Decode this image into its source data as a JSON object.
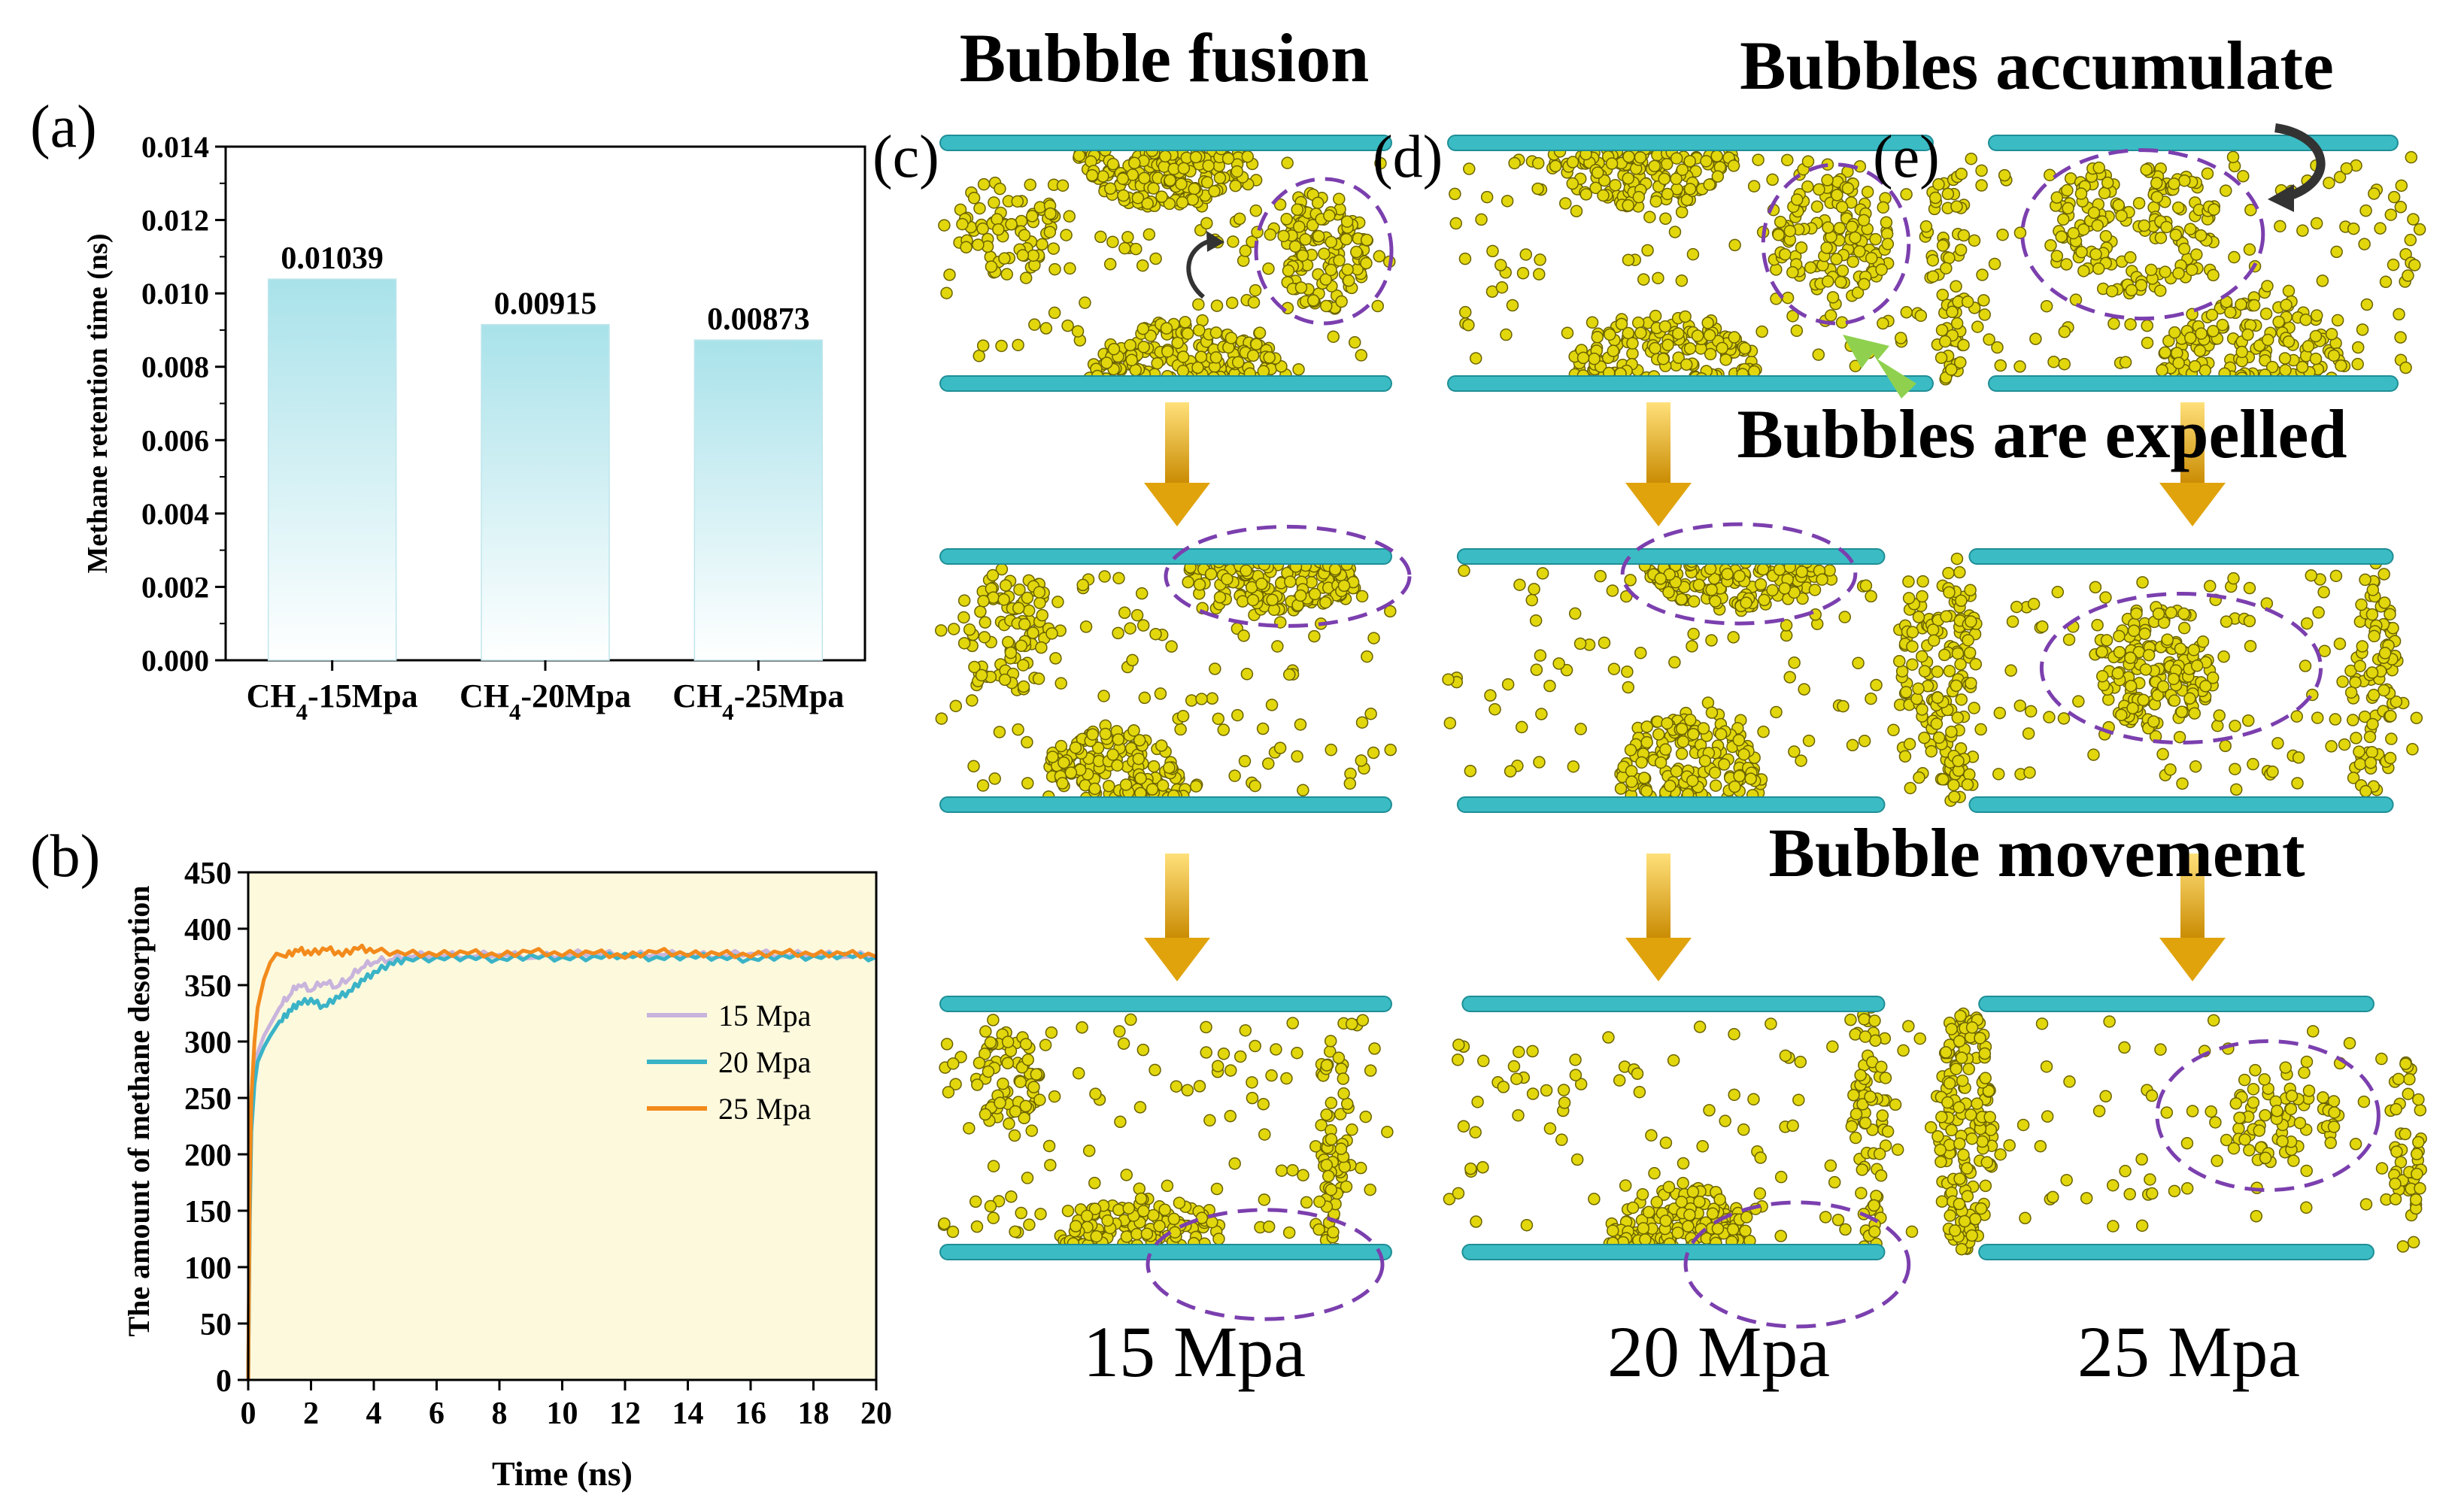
{
  "panel_labels": {
    "a": "(a)",
    "b": "(b)",
    "c": "(c)",
    "d": "(d)",
    "e": "(e)"
  },
  "chart_data": [
    {
      "id": "a",
      "type": "bar",
      "title": "",
      "xlabel": "",
      "ylabel": "Methane retention time (ns)",
      "categories": [
        "CH4-15Mpa",
        "CH4-20Mpa",
        "CH4-25Mpa"
      ],
      "values": [
        0.01039,
        0.00915,
        0.00873
      ],
      "value_labels": [
        "0.01039",
        "0.00915",
        "0.00873"
      ],
      "ylim": [
        0,
        0.014
      ],
      "yticks": [
        "0.000",
        "0.002",
        "0.004",
        "0.006",
        "0.008",
        "0.010",
        "0.012",
        "0.014"
      ],
      "bar_color": "#bfe9ef"
    },
    {
      "id": "b",
      "type": "line",
      "xlabel": "Time (ns)",
      "ylabel": "The amount of methane desorption",
      "xlim": [
        0,
        20
      ],
      "ylim": [
        0,
        450
      ],
      "xticks": [
        "0",
        "2",
        "4",
        "6",
        "8",
        "10",
        "12",
        "14",
        "16",
        "18",
        "20"
      ],
      "yticks": [
        "0",
        "50",
        "100",
        "150",
        "200",
        "250",
        "300",
        "350",
        "400",
        "450"
      ],
      "background": "#fdf9dd",
      "legend_position": "center-right",
      "series": [
        {
          "name": "15 Mpa",
          "color": "#c8b4dc",
          "x": [
            0,
            0.05,
            0.1,
            0.2,
            0.3,
            0.5,
            0.7,
            1.0,
            1.3,
            1.6,
            2.0,
            2.4,
            2.8,
            3.2,
            3.6,
            4.0,
            4.5,
            5.0,
            6.0,
            7.0,
            8.0,
            9.0,
            10.0,
            11.0,
            12.0,
            13.0,
            14.0,
            15.0,
            16.0,
            17.0,
            18.0,
            19.0,
            20.0
          ],
          "y": [
            0,
            150,
            230,
            275,
            290,
            305,
            315,
            330,
            340,
            350,
            345,
            352,
            348,
            355,
            365,
            370,
            372,
            375,
            376,
            375,
            377,
            374,
            376,
            378,
            375,
            377,
            376,
            375,
            378,
            376,
            377,
            375,
            376
          ]
        },
        {
          "name": "20 Mpa",
          "color": "#3ab3c7",
          "x": [
            0,
            0.05,
            0.1,
            0.2,
            0.3,
            0.5,
            0.7,
            1.0,
            1.3,
            1.6,
            2.0,
            2.4,
            2.8,
            3.2,
            3.6,
            4.0,
            4.5,
            5.0,
            6.0,
            7.0,
            8.0,
            9.0,
            10.0,
            11.0,
            12.0,
            13.0,
            14.0,
            15.0,
            16.0,
            17.0,
            18.0,
            19.0,
            20.0
          ],
          "y": [
            0,
            140,
            220,
            262,
            282,
            295,
            305,
            318,
            328,
            335,
            338,
            332,
            340,
            345,
            355,
            362,
            370,
            374,
            375,
            376,
            374,
            377,
            375,
            376,
            378,
            375,
            377,
            376,
            374,
            377,
            376,
            378,
            375
          ]
        },
        {
          "name": "25 Mpa",
          "color": "#f28a1c",
          "x": [
            0,
            0.05,
            0.1,
            0.2,
            0.3,
            0.5,
            0.7,
            0.9,
            1.2,
            1.6,
            2.0,
            2.5,
            3.0,
            3.5,
            4.0,
            5.0,
            6.0,
            7.0,
            8.0,
            9.0,
            10.0,
            11.0,
            12.0,
            13.0,
            14.0,
            15.0,
            16.0,
            17.0,
            18.0,
            19.0,
            20.0
          ],
          "y": [
            0,
            170,
            250,
            300,
            330,
            355,
            370,
            378,
            375,
            380,
            377,
            381,
            376,
            382,
            379,
            377,
            376,
            378,
            375,
            379,
            376,
            378,
            374,
            379,
            376,
            377,
            375,
            378,
            376,
            377,
            375
          ]
        }
      ]
    }
  ],
  "simulation": {
    "annotations": {
      "fusion": "Bubble fusion",
      "accumulate": "Bubbles accumulate",
      "expelled": "Bubbles are expelled",
      "movement": "Bubble movement"
    },
    "pressure_labels": [
      "15 Mpa",
      "20 Mpa",
      "25 Mpa"
    ],
    "colors": {
      "wall": "#3bbcc4",
      "molecule": "#e2d70c",
      "molecule_dark": "#6b6300",
      "arrow": "#e0a30c",
      "ellipse": "#7b3fae",
      "green_arrow": "#8fd14f"
    }
  }
}
